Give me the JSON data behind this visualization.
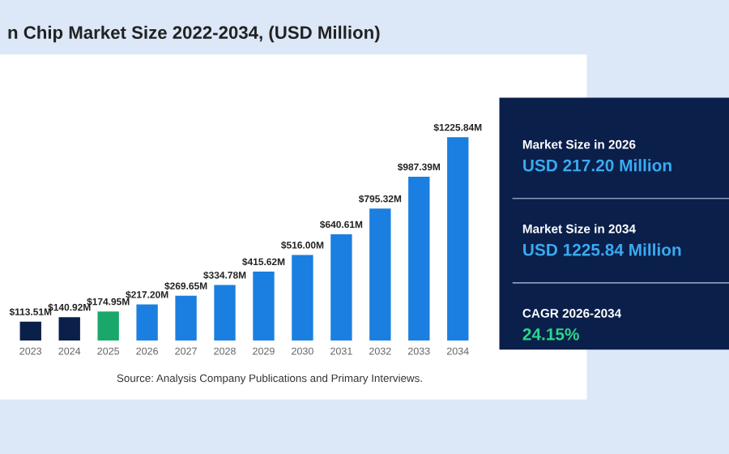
{
  "chart_data": [
    {
      "type": "bar",
      "title": "n Chip Market Size 2022-2034, (USD Million)",
      "categories": [
        "2023",
        "2024",
        "2025",
        "2026",
        "2027",
        "2028",
        "2029",
        "2030",
        "2031",
        "2032",
        "2033",
        "2034"
      ],
      "values": [
        113.51,
        140.92,
        174.95,
        217.2,
        269.65,
        334.78,
        415.62,
        516.0,
        640.61,
        795.32,
        987.39,
        1225.84
      ],
      "value_labels": [
        "$113.51M",
        "$140.92M",
        "$174.95M",
        "$217.20M",
        "$269.65M",
        "$334.78M",
        "$415.62M",
        "$516.00M",
        "$640.61M",
        "$795.32M",
        "$987.39M",
        "$1225.84M"
      ],
      "colors": [
        "#0b1f4b",
        "#0b1f4b",
        "#1aa86a",
        "#1a7fe0",
        "#1a7fe0",
        "#1a7fe0",
        "#1a7fe0",
        "#1a7fe0",
        "#1a7fe0",
        "#1a7fe0",
        "#1a7fe0",
        "#1a7fe0"
      ],
      "annotations": [
        "Source: Analysis Company Publications and Primary Interviews."
      ]
    },
    {
      "type": "other",
      "annotations": [
        "Market Size in 2026",
        "USD 217.20 Million",
        "Market Size in 2034",
        "USD 1225.84 Million",
        "CAGR 2026-2034",
        "24.15%"
      ]
    }
  ]
}
